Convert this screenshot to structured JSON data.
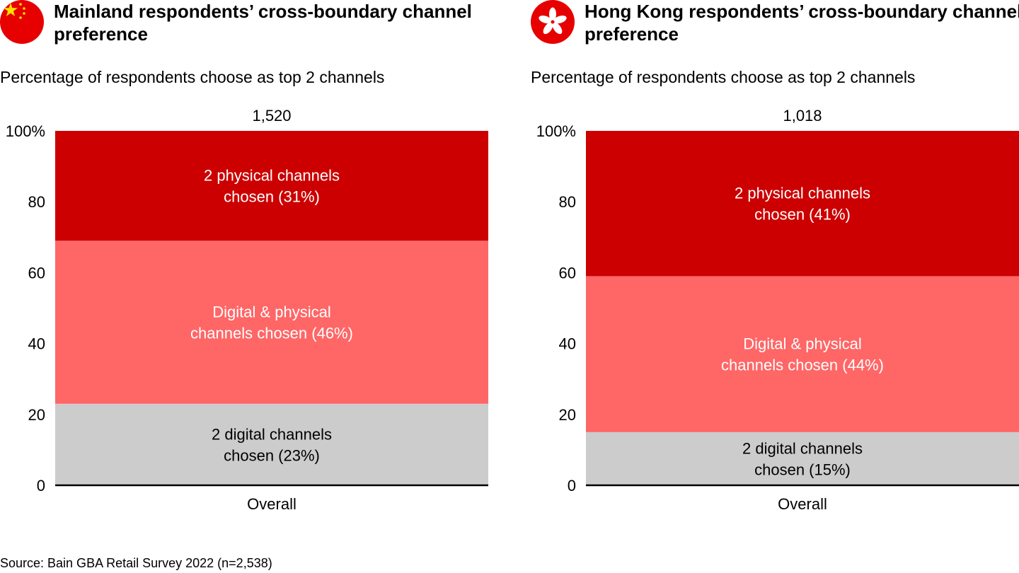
{
  "source": "Source: Bain GBA Retail Survey 2022 (n=2,538)",
  "colors": {
    "physical": "#cc0000",
    "mixed": "#ff6666",
    "digital": "#cccccc",
    "flag": "#e60000",
    "star": "#ffde00"
  },
  "icons": {
    "left": "china-flag-icon",
    "right": "hong-kong-flag-icon"
  },
  "chart_data": [
    {
      "type": "bar",
      "stacked": true,
      "title": "Mainland respondents’ cross-boundary channel preference",
      "subtitle": "Percentage of respondents choose as top 2 channels",
      "categories": [
        "Overall"
      ],
      "total_label": "1,520",
      "ylim": [
        0,
        100
      ],
      "yticks": [
        0,
        20,
        40,
        60,
        80,
        100
      ],
      "ytick_labels": [
        "0",
        "20",
        "40",
        "60",
        "80",
        "100%"
      ],
      "series": [
        {
          "name": "2 digital channels chosen",
          "values": [
            23
          ],
          "label_lines": [
            "2 digital channels",
            "chosen (23%)"
          ],
          "color_key": "digital",
          "label_color": "#000000"
        },
        {
          "name": "Digital & physical channels chosen",
          "values": [
            46
          ],
          "label_lines": [
            "Digital & physical",
            "channels chosen (46%)"
          ],
          "color_key": "mixed",
          "label_color": "#ffffff"
        },
        {
          "name": "2 physical channels chosen",
          "values": [
            31
          ],
          "label_lines": [
            "2 physical channels",
            "chosen (31%)"
          ],
          "color_key": "physical",
          "label_color": "#ffffff"
        }
      ]
    },
    {
      "type": "bar",
      "stacked": true,
      "title": "Hong Kong respondents’ cross-boundary channel preference",
      "subtitle": "Percentage of respondents choose as top 2 channels",
      "categories": [
        "Overall"
      ],
      "total_label": "1,018",
      "ylim": [
        0,
        100
      ],
      "yticks": [
        0,
        20,
        40,
        60,
        80,
        100
      ],
      "ytick_labels": [
        "0",
        "20",
        "40",
        "60",
        "80",
        "100%"
      ],
      "series": [
        {
          "name": "2 digital channels chosen",
          "values": [
            15
          ],
          "label_lines": [
            "2 digital channels",
            "chosen (15%)"
          ],
          "color_key": "digital",
          "label_color": "#000000"
        },
        {
          "name": "Digital & physical channels chosen",
          "values": [
            44
          ],
          "label_lines": [
            "Digital & physical",
            "channels chosen (44%)"
          ],
          "color_key": "mixed",
          "label_color": "#ffffff"
        },
        {
          "name": "2 physical channels chosen",
          "values": [
            41
          ],
          "label_lines": [
            "2 physical channels",
            "chosen (41%)"
          ],
          "color_key": "physical",
          "label_color": "#ffffff"
        }
      ]
    }
  ]
}
